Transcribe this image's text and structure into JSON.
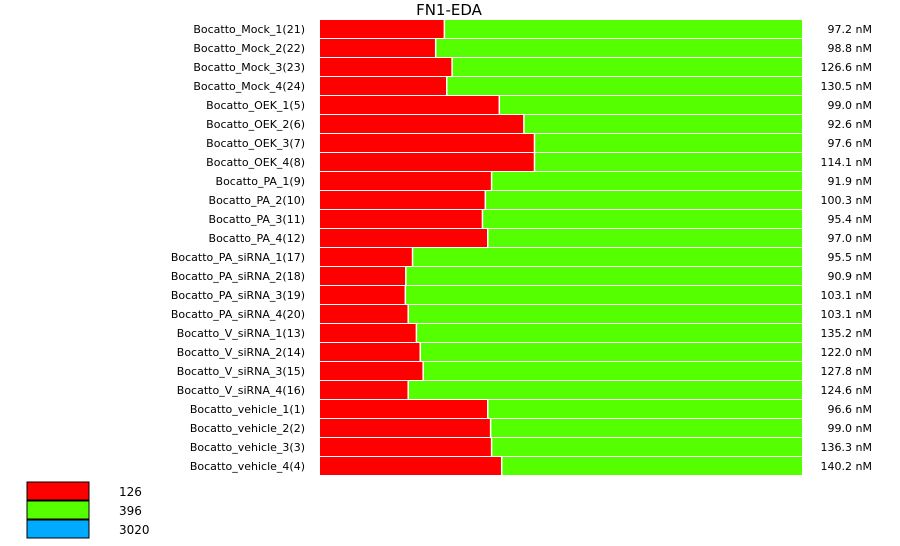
{
  "chart_data": {
    "type": "bar",
    "orientation": "horizontal",
    "stacked": true,
    "normalized": true,
    "title": "FN1-EDA",
    "categories": [
      "Bocatto_Mock_1(21)",
      "Bocatto_Mock_2(22)",
      "Bocatto_Mock_3(23)",
      "Bocatto_Mock_4(24)",
      "Bocatto_OEK_1(5)",
      "Bocatto_OEK_2(6)",
      "Bocatto_OEK_3(7)",
      "Bocatto_OEK_4(8)",
      "Bocatto_PA_1(9)",
      "Bocatto_PA_2(10)",
      "Bocatto_PA_3(11)",
      "Bocatto_PA_4(12)",
      "Bocatto_PA_siRNA_1(17)",
      "Bocatto_PA_siRNA_2(18)",
      "Bocatto_PA_siRNA_3(19)",
      "Bocatto_PA_siRNA_4(20)",
      "Bocatto_V_siRNA_1(13)",
      "Bocatto_V_siRNA_2(14)",
      "Bocatto_V_siRNA_3(15)",
      "Bocatto_V_siRNA_4(16)",
      "Bocatto_vehicle_1(1)",
      "Bocatto_vehicle_2(2)",
      "Bocatto_vehicle_3(3)",
      "Bocatto_vehicle_4(4)"
    ],
    "series": [
      {
        "name": "126",
        "color": "#ff0000",
        "values": [
          0.258,
          0.24,
          0.274,
          0.263,
          0.372,
          0.423,
          0.445,
          0.445,
          0.356,
          0.343,
          0.337,
          0.348,
          0.192,
          0.178,
          0.177,
          0.183,
          0.2,
          0.208,
          0.214,
          0.183,
          0.348,
          0.354,
          0.356,
          0.377
        ]
      },
      {
        "name": "396",
        "color": "#55ff00",
        "values": [
          0.742,
          0.76,
          0.726,
          0.737,
          0.628,
          0.577,
          0.555,
          0.555,
          0.644,
          0.657,
          0.663,
          0.652,
          0.808,
          0.822,
          0.823,
          0.817,
          0.8,
          0.792,
          0.786,
          0.817,
          0.652,
          0.646,
          0.644,
          0.623
        ]
      },
      {
        "name": "3020",
        "color": "#00aaff",
        "values": [
          0,
          0,
          0,
          0,
          0,
          0,
          0,
          0,
          0,
          0,
          0,
          0,
          0,
          0,
          0,
          0,
          0,
          0,
          0,
          0,
          0,
          0,
          0,
          0
        ]
      }
    ],
    "value_labels": [
      "97.2 nM",
      "98.8 nM",
      "126.6 nM",
      "130.5 nM",
      "99.0 nM",
      "92.6 nM",
      "97.6 nM",
      "114.1 nM",
      "91.9 nM",
      "100.3 nM",
      "95.4 nM",
      "97.0 nM",
      "95.5 nM",
      "90.9 nM",
      "103.1 nM",
      "103.1 nM",
      "135.2 nM",
      "122.0 nM",
      "127.8 nM",
      "124.6 nM",
      "96.6 nM",
      "99.0 nM",
      "136.3 nM",
      "140.2 nM"
    ],
    "xlim": [
      0,
      1
    ],
    "grid": false,
    "legend_position": "bottom-left"
  }
}
